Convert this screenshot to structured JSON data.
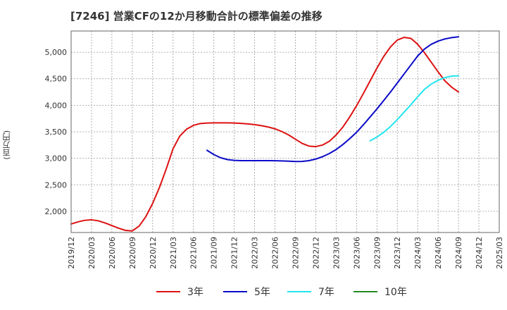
{
  "chart_data": {
    "type": "line",
    "title": "[7246]  営業CFの12か月移動合計の標準偏差の推移",
    "ylabel": "(百万円)",
    "xlabel": "",
    "ylim": [
      1600,
      5400
    ],
    "y_ticks": [
      2000,
      2500,
      3000,
      3500,
      4000,
      4500,
      5000
    ],
    "y_tick_labels": [
      "2,000",
      "2,500",
      "3,000",
      "3,500",
      "4,000",
      "4,500",
      "5,000"
    ],
    "x_range": [
      "2019-12",
      "2025-03"
    ],
    "x_tick_labels": [
      "2019/12",
      "2020/03",
      "2020/06",
      "2020/09",
      "2020/12",
      "2021/03",
      "2021/06",
      "2021/09",
      "2021/12",
      "2022/03",
      "2022/06",
      "2022/09",
      "2022/12",
      "2023/03",
      "2023/06",
      "2023/09",
      "2023/12",
      "2024/03",
      "2024/06",
      "2024/09",
      "2024/12",
      "2025/03"
    ],
    "grid": true,
    "legend_position": "bottom",
    "series": [
      {
        "name": "3年",
        "color": "#dd1111",
        "x": [
          "2019-12",
          "2020-01",
          "2020-02",
          "2020-03",
          "2020-04",
          "2020-05",
          "2020-06",
          "2020-07",
          "2020-08",
          "2020-09",
          "2020-10",
          "2020-11",
          "2020-12",
          "2021-01",
          "2021-02",
          "2021-03",
          "2021-04",
          "2021-05",
          "2021-06",
          "2021-07",
          "2021-08",
          "2021-09",
          "2021-10",
          "2021-11",
          "2021-12",
          "2022-01",
          "2022-02",
          "2022-03",
          "2022-04",
          "2022-05",
          "2022-06",
          "2022-07",
          "2022-08",
          "2022-09",
          "2022-10",
          "2022-11",
          "2022-12",
          "2023-01",
          "2023-02",
          "2023-03",
          "2023-04",
          "2023-05",
          "2023-06",
          "2023-07",
          "2023-08",
          "2023-09",
          "2023-10",
          "2023-11",
          "2023-12",
          "2024-01",
          "2024-02",
          "2024-03",
          "2024-04",
          "2024-05",
          "2024-06",
          "2024-07",
          "2024-08",
          "2024-09"
        ],
        "values": [
          1760,
          1800,
          1830,
          1840,
          1820,
          1780,
          1730,
          1680,
          1640,
          1630,
          1720,
          1900,
          2150,
          2450,
          2800,
          3180,
          3420,
          3550,
          3620,
          3655,
          3665,
          3668,
          3668,
          3667,
          3664,
          3658,
          3648,
          3635,
          3615,
          3590,
          3555,
          3505,
          3440,
          3360,
          3280,
          3230,
          3220,
          3250,
          3320,
          3440,
          3590,
          3780,
          3990,
          4220,
          4460,
          4700,
          4920,
          5100,
          5230,
          5280,
          5260,
          5150,
          4990,
          4810,
          4630,
          4460,
          4340,
          4250
        ]
      },
      {
        "name": "5年",
        "color": "#0a0ac8",
        "x": [
          "2021-08",
          "2021-09",
          "2021-10",
          "2021-11",
          "2021-12",
          "2022-01",
          "2022-02",
          "2022-03",
          "2022-04",
          "2022-05",
          "2022-06",
          "2022-07",
          "2022-08",
          "2022-09",
          "2022-10",
          "2022-11",
          "2022-12",
          "2023-01",
          "2023-02",
          "2023-03",
          "2023-04",
          "2023-05",
          "2023-06",
          "2023-07",
          "2023-08",
          "2023-09",
          "2023-10",
          "2023-11",
          "2023-12",
          "2024-01",
          "2024-02",
          "2024-03",
          "2024-04",
          "2024-05",
          "2024-06",
          "2024-07",
          "2024-08",
          "2024-09"
        ],
        "values": [
          3150,
          3070,
          3010,
          2975,
          2960,
          2955,
          2955,
          2955,
          2955,
          2955,
          2953,
          2950,
          2945,
          2938,
          2940,
          2955,
          2985,
          3030,
          3090,
          3165,
          3260,
          3370,
          3490,
          3630,
          3780,
          3930,
          4090,
          4250,
          4420,
          4590,
          4760,
          4930,
          5060,
          5150,
          5210,
          5250,
          5275,
          5290
        ]
      },
      {
        "name": "7年",
        "color": "#22e5ee",
        "x": [
          "2023-08",
          "2023-09",
          "2023-10",
          "2023-11",
          "2023-12",
          "2024-01",
          "2024-02",
          "2024-03",
          "2024-04",
          "2024-05",
          "2024-06",
          "2024-07",
          "2024-08",
          "2024-09"
        ],
        "values": [
          3330,
          3400,
          3490,
          3600,
          3730,
          3870,
          4010,
          4160,
          4300,
          4400,
          4470,
          4520,
          4550,
          4555
        ]
      },
      {
        "name": "10年",
        "color": "#228b22",
        "x": [],
        "values": []
      }
    ]
  }
}
